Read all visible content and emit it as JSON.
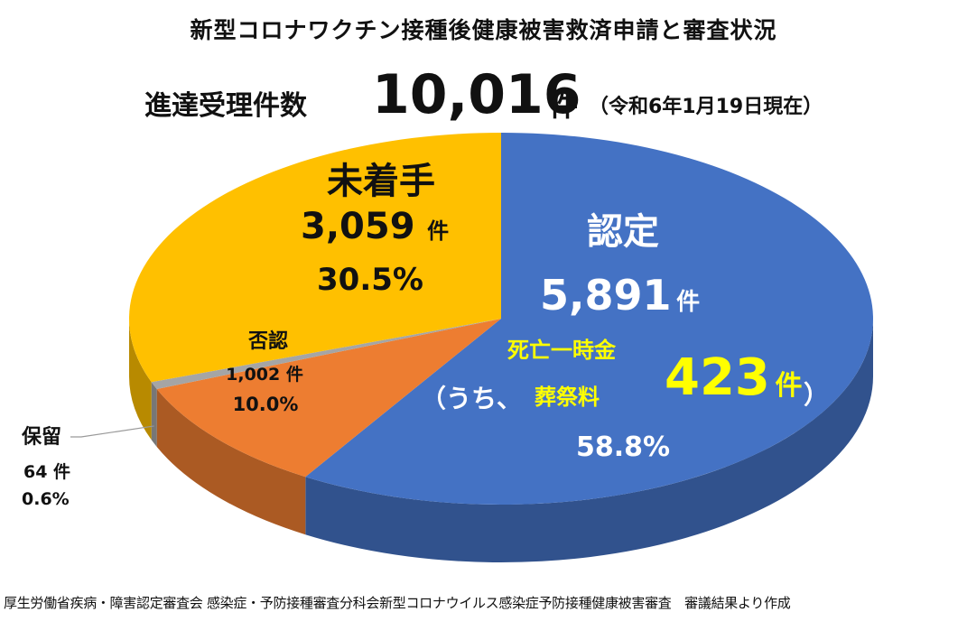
{
  "title": "新型コロナワクチン接種後健康被害救済申請と審査状況",
  "summary": {
    "label": "進達受理件数",
    "total": "10,016",
    "unit": "件",
    "as_of": "（令和6年1月19日現在）"
  },
  "chart_data": {
    "type": "pie",
    "title": "新型コロナワクチン接種後健康被害救済申請と審査状況",
    "total": 10016,
    "slices": [
      {
        "label": "認定",
        "value": 5891,
        "value_text": "5,891",
        "unit": "件",
        "percent": 58.8,
        "percent_text": "58.8%",
        "color": "#4472C4"
      },
      {
        "label": "否認",
        "value": 1002,
        "value_text": "1,002 件",
        "percent": 10.0,
        "percent_text": "10.0%",
        "color": "#ED7D31"
      },
      {
        "label": "保留",
        "value": 64,
        "value_text": "64 件",
        "percent": 0.6,
        "percent_text": "0.6%",
        "color": "#A5A5A5"
      },
      {
        "label": "未着手",
        "value": 3059,
        "value_text": "3,059",
        "unit": "件",
        "percent": 30.5,
        "percent_text": "30.5%",
        "color": "#FFC000"
      }
    ],
    "annotation": {
      "open": "（うち、",
      "line1": "死亡一時金",
      "line2": "葬祭料",
      "value": "423",
      "unit": "件",
      "close": "）",
      "color": "#FFFF00"
    }
  },
  "source": "厚生労働省疾病・障害認定審査会 感染症・予防接種審査分科会新型コロナウイルス感染症予防接種健康被害審査　審議結果より作成"
}
